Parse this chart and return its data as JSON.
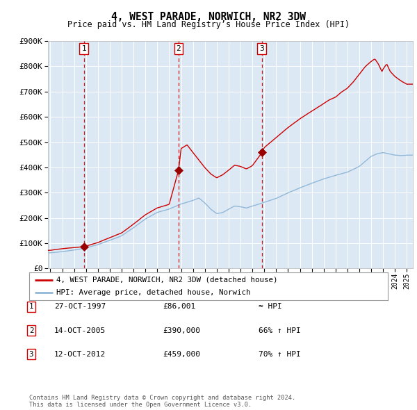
{
  "title": "4, WEST PARADE, NORWICH, NR2 3DW",
  "subtitle": "Price paid vs. HM Land Registry’s House Price Index (HPI)",
  "background_color": "#dce9f5",
  "plot_bg_color": "#dce9f5",
  "hpi_line_color": "#92b8d8",
  "price_line_color": "#cc0000",
  "sale_marker_color": "#990000",
  "vline_color": "#cc0000",
  "sales": [
    {
      "date_x": 1997.82,
      "price": 86001,
      "label": "1"
    },
    {
      "date_x": 2005.79,
      "price": 390000,
      "label": "2"
    },
    {
      "date_x": 2012.79,
      "price": 459000,
      "label": "3"
    }
  ],
  "legend_entries": [
    "4, WEST PARADE, NORWICH, NR2 3DW (detached house)",
    "HPI: Average price, detached house, Norwich"
  ],
  "table_rows": [
    {
      "num": "1",
      "date": "27-OCT-1997",
      "price": "£86,001",
      "rel": "≈ HPI"
    },
    {
      "num": "2",
      "date": "14-OCT-2005",
      "price": "£390,000",
      "rel": "66% ↑ HPI"
    },
    {
      "num": "3",
      "date": "12-OCT-2012",
      "price": "£459,000",
      "rel": "70% ↑ HPI"
    }
  ],
  "footer": "Contains HM Land Registry data © Crown copyright and database right 2024.\nThis data is licensed under the Open Government Licence v3.0.",
  "ylim": [
    0,
    900000
  ],
  "yticks": [
    0,
    100000,
    200000,
    300000,
    400000,
    500000,
    600000,
    700000,
    800000,
    900000
  ],
  "ytick_labels": [
    "£0",
    "£100K",
    "£200K",
    "£300K",
    "£400K",
    "£500K",
    "£600K",
    "£700K",
    "£800K",
    "£900K"
  ],
  "xlim_start": 1994.8,
  "xlim_end": 2025.5,
  "hpi_keypoints": [
    [
      1995.0,
      62000
    ],
    [
      1996.0,
      67000
    ],
    [
      1997.0,
      73000
    ],
    [
      1998.0,
      82000
    ],
    [
      1999.0,
      95000
    ],
    [
      2000.0,
      112000
    ],
    [
      2001.0,
      130000
    ],
    [
      2002.0,
      162000
    ],
    [
      2003.0,
      196000
    ],
    [
      2004.0,
      222000
    ],
    [
      2005.0,
      235000
    ],
    [
      2006.0,
      255000
    ],
    [
      2007.0,
      270000
    ],
    [
      2007.5,
      280000
    ],
    [
      2008.0,
      260000
    ],
    [
      2008.5,
      235000
    ],
    [
      2009.0,
      218000
    ],
    [
      2009.5,
      222000
    ],
    [
      2010.0,
      235000
    ],
    [
      2010.5,
      248000
    ],
    [
      2011.0,
      245000
    ],
    [
      2011.5,
      240000
    ],
    [
      2012.0,
      248000
    ],
    [
      2012.5,
      255000
    ],
    [
      2013.0,
      263000
    ],
    [
      2014.0,
      278000
    ],
    [
      2015.0,
      300000
    ],
    [
      2016.0,
      320000
    ],
    [
      2017.0,
      338000
    ],
    [
      2018.0,
      355000
    ],
    [
      2019.0,
      370000
    ],
    [
      2020.0,
      382000
    ],
    [
      2021.0,
      405000
    ],
    [
      2021.5,
      425000
    ],
    [
      2022.0,
      445000
    ],
    [
      2022.5,
      455000
    ],
    [
      2023.0,
      460000
    ],
    [
      2023.5,
      455000
    ],
    [
      2024.0,
      450000
    ],
    [
      2024.5,
      448000
    ],
    [
      2025.0,
      450000
    ]
  ],
  "prop_keypoints": [
    [
      1995.0,
      72000
    ],
    [
      1996.0,
      78000
    ],
    [
      1997.0,
      82000
    ],
    [
      1997.82,
      86001
    ],
    [
      1998.0,
      88000
    ],
    [
      1999.0,
      102000
    ],
    [
      2000.0,
      121000
    ],
    [
      2001.0,
      140000
    ],
    [
      2002.0,
      175000
    ],
    [
      2003.0,
      212000
    ],
    [
      2004.0,
      240000
    ],
    [
      2005.0,
      254000
    ],
    [
      2005.79,
      390000
    ],
    [
      2006.0,
      475000
    ],
    [
      2006.5,
      490000
    ],
    [
      2007.0,
      460000
    ],
    [
      2007.5,
      430000
    ],
    [
      2008.0,
      400000
    ],
    [
      2008.5,
      375000
    ],
    [
      2009.0,
      360000
    ],
    [
      2009.5,
      372000
    ],
    [
      2010.0,
      390000
    ],
    [
      2010.5,
      410000
    ],
    [
      2011.0,
      405000
    ],
    [
      2011.5,
      395000
    ],
    [
      2012.0,
      408000
    ],
    [
      2012.79,
      459000
    ],
    [
      2013.0,
      480000
    ],
    [
      2014.0,
      520000
    ],
    [
      2015.0,
      560000
    ],
    [
      2016.0,
      595000
    ],
    [
      2017.0,
      625000
    ],
    [
      2018.0,
      655000
    ],
    [
      2018.5,
      670000
    ],
    [
      2019.0,
      680000
    ],
    [
      2019.5,
      700000
    ],
    [
      2020.0,
      715000
    ],
    [
      2020.5,
      740000
    ],
    [
      2021.0,
      770000
    ],
    [
      2021.5,
      800000
    ],
    [
      2022.0,
      820000
    ],
    [
      2022.3,
      830000
    ],
    [
      2022.6,
      810000
    ],
    [
      2022.9,
      780000
    ],
    [
      2023.0,
      790000
    ],
    [
      2023.3,
      810000
    ],
    [
      2023.6,
      780000
    ],
    [
      2024.0,
      760000
    ],
    [
      2024.3,
      750000
    ],
    [
      2024.6,
      740000
    ],
    [
      2025.0,
      730000
    ]
  ]
}
